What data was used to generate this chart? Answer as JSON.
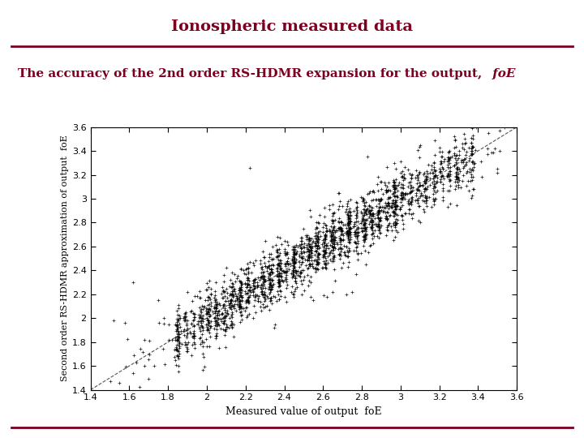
{
  "title": "Ionospheric measured data",
  "subtitle_normal": "The accuracy of the 2nd order RS-HDMR expansion for the output,",
  "subtitle_italic": " foE",
  "xlabel": "Measured value of output  foE",
  "ylabel": "Second order RS-HDMR approximation of output  foE",
  "xlim": [
    1.4,
    3.6
  ],
  "ylim": [
    1.4,
    3.6
  ],
  "xticks": [
    1.4,
    1.6,
    1.8,
    2.0,
    2.2,
    2.4,
    2.6,
    2.8,
    3.0,
    3.2,
    3.4,
    3.6
  ],
  "yticks": [
    1.4,
    1.6,
    1.8,
    2.0,
    2.2,
    2.4,
    2.6,
    2.8,
    3.0,
    3.2,
    3.4,
    3.6
  ],
  "title_color": "#7B0020",
  "subtitle_color": "#7B0020",
  "background_color": "#FFFFFF",
  "border_color": "#7B0020",
  "scatter_color": "black",
  "diag_line_color": "#555555",
  "seed": 42,
  "noise_std": 0.08
}
